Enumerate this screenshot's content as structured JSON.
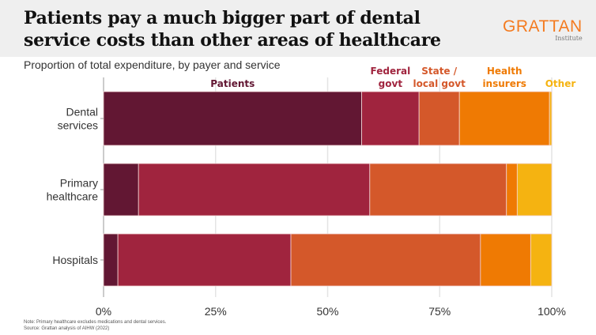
{
  "header": {
    "title": "Patients pay a much bigger part of dental service costs than other areas of healthcare",
    "logo_main": "GRATTAN",
    "logo_sub": "Institute"
  },
  "chart_data": {
    "type": "bar",
    "orientation": "horizontal",
    "stacked": true,
    "subtitle": "Proportion of total expenditure, by payer and service",
    "categories": [
      "Dental\nservices",
      "Primary\nhealthcare",
      "Hospitals"
    ],
    "series": [
      {
        "name": "Patients",
        "label_lines": [
          "Patients"
        ],
        "color": "#621733",
        "values": [
          57.6,
          7.8,
          3.2
        ]
      },
      {
        "name": "Federal govt",
        "label_lines": [
          "Federal",
          "govt"
        ],
        "color": "#a0243e",
        "values": [
          12.8,
          51.6,
          38.6
        ]
      },
      {
        "name": "State / local govt",
        "label_lines": [
          "State /",
          "local govt"
        ],
        "color": "#d4582a",
        "values": [
          9.0,
          30.5,
          42.3
        ]
      },
      {
        "name": "Health insurers",
        "label_lines": [
          "Health",
          "insurers"
        ],
        "color": "#ef7a03",
        "values": [
          20.1,
          2.4,
          11.2
        ]
      },
      {
        "name": "Other",
        "label_lines": [
          "Other"
        ],
        "color": "#f5b311",
        "values": [
          0.5,
          7.7,
          4.7
        ]
      }
    ],
    "xlim": [
      0,
      100
    ],
    "xticks": [
      "0%",
      "25%",
      "50%",
      "75%",
      "100%"
    ],
    "grid": true,
    "legend": "direct labels above top bar"
  },
  "notes": {
    "note": "Note: Primary healthcare excludes medications and dental services.",
    "source": "Source: Grattan analysis of AIHW (2022)"
  }
}
